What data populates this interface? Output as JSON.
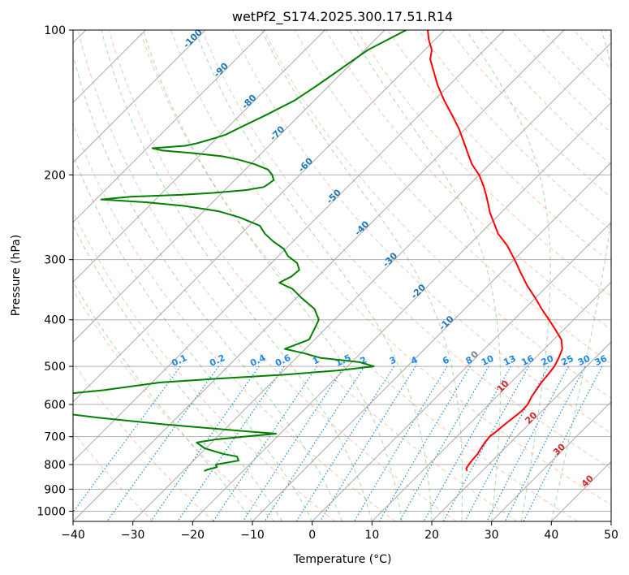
{
  "chart_data": {
    "type": "line",
    "subtype": "skew-t log-p diagram",
    "title": "wetPf2_S174.2025.300.17.51.R14",
    "xlabel": "Temperature (°C)",
    "ylabel": "Pressure (hPa)",
    "xlim": [
      -40,
      50
    ],
    "ylim": [
      1050,
      100
    ],
    "y_scale": "log",
    "grid": true,
    "x_ticks": [
      "−40",
      "−30",
      "−20",
      "−10",
      "0",
      "10",
      "20",
      "30",
      "40",
      "50"
    ],
    "y_ticks": [
      "100",
      "200",
      "300",
      "400",
      "500",
      "600",
      "700",
      "800",
      "900",
      "1000"
    ],
    "y_tick_values": [
      100,
      200,
      300,
      400,
      500,
      600,
      700,
      800,
      900,
      1000
    ],
    "isotherm_labels": [
      "-100",
      "-90",
      "-80",
      "-70",
      "-60",
      "-50",
      "-40",
      "-30",
      "-20",
      "-10",
      "0",
      "10",
      "20",
      "30",
      "40"
    ],
    "mixing_ratio_labels": [
      "0.1",
      "0.2",
      "0.4",
      "0.6",
      "1",
      "1.5",
      "2",
      "3",
      "4",
      "6",
      "8",
      "10",
      "13",
      "16",
      "20",
      "25",
      "30",
      "36"
    ],
    "colors": {
      "temperature": "#ff0000",
      "dewpoint": "#008000",
      "isotherm": "#808080",
      "dry_adiabat": "#ff7f50",
      "moist_adiabat": "#2ca02c",
      "mixing_ratio": "#1e88e5",
      "cold_label": "#1f77b4",
      "warm_label": "#d62728",
      "zero_label": "#808080"
    },
    "series": [
      {
        "name": "Temperature",
        "p": [
          825,
          815,
          800,
          780,
          760,
          740,
          720,
          700,
          680,
          660,
          640,
          620,
          600,
          580,
          560,
          540,
          520,
          500,
          480,
          460,
          440,
          420,
          400,
          380,
          360,
          340,
          320,
          300,
          280,
          265,
          250,
          240,
          230,
          220,
          210,
          200,
          190,
          180,
          170,
          160,
          150,
          140,
          130,
          120,
          115,
          110,
          105,
          100
        ],
        "t": [
          17.5,
          16.9,
          16.7,
          16.5,
          16.4,
          16.0,
          15.7,
          15.5,
          15.8,
          16.0,
          16.3,
          16.6,
          16.5,
          15.9,
          15.5,
          15.1,
          14.9,
          14.6,
          13.9,
          13.0,
          11.3,
          8.7,
          5.9,
          2.9,
          -0.1,
          -3.4,
          -6.6,
          -9.9,
          -13.6,
          -17.0,
          -19.8,
          -21.8,
          -23.6,
          -25.5,
          -27.6,
          -30.0,
          -33.0,
          -35.6,
          -38.3,
          -41.2,
          -44.6,
          -48.3,
          -52.0,
          -55.6,
          -57.5,
          -58.8,
          -60.9,
          -62.8
        ]
      },
      {
        "name": "Dewpoint",
        "p": [
          825,
          820,
          810,
          800,
          785,
          770,
          760,
          740,
          720,
          710,
          700,
          690,
          680,
          660,
          640,
          620,
          600,
          590,
          580,
          560,
          540,
          530,
          520,
          510,
          500,
          490,
          480,
          470,
          460,
          440,
          420,
          400,
          380,
          360,
          345,
          335,
          325,
          315,
          305,
          295,
          285,
          275,
          265,
          255,
          245,
          238,
          232,
          228,
          225,
          222,
          220,
          218,
          215,
          212,
          210,
          205,
          200,
          195,
          190,
          186,
          183,
          180,
          178,
          176,
          174,
          172,
          170,
          167,
          165,
          160,
          150,
          140,
          130,
          120,
          110,
          105,
          100
        ],
        "td": [
          -26.5,
          -26.2,
          -25.0,
          -25.6,
          -22.5,
          -23.4,
          -26.2,
          -30.2,
          -32.5,
          -30.0,
          -25.7,
          -20.7,
          -27.6,
          -41.0,
          -52.7,
          -62.9,
          -89.9,
          -74.6,
          -68.0,
          -56.7,
          -48.6,
          -39.5,
          -29.0,
          -21.0,
          -15.6,
          -18.7,
          -26.0,
          -29.3,
          -33.4,
          -30.9,
          -31.7,
          -32.6,
          -35.1,
          -39.2,
          -42.2,
          -45.4,
          -44.4,
          -44.2,
          -45.7,
          -48.4,
          -50.3,
          -53.3,
          -56.0,
          -58.2,
          -63.0,
          -67.5,
          -74.2,
          -81.0,
          -89.1,
          -84.7,
          -76.6,
          -71.4,
          -66.4,
          -64.0,
          -63.8,
          -63.5,
          -64.6,
          -66.2,
          -69.4,
          -72.7,
          -76.0,
          -82.0,
          -87.0,
          -89.1,
          -84.0,
          -82.5,
          -81.5,
          -80.0,
          -79.1,
          -78.0,
          -75.6,
          -73.3,
          -72.0,
          -70.8,
          -69.5,
          -68.0,
          -66.4
        ]
      }
    ]
  }
}
